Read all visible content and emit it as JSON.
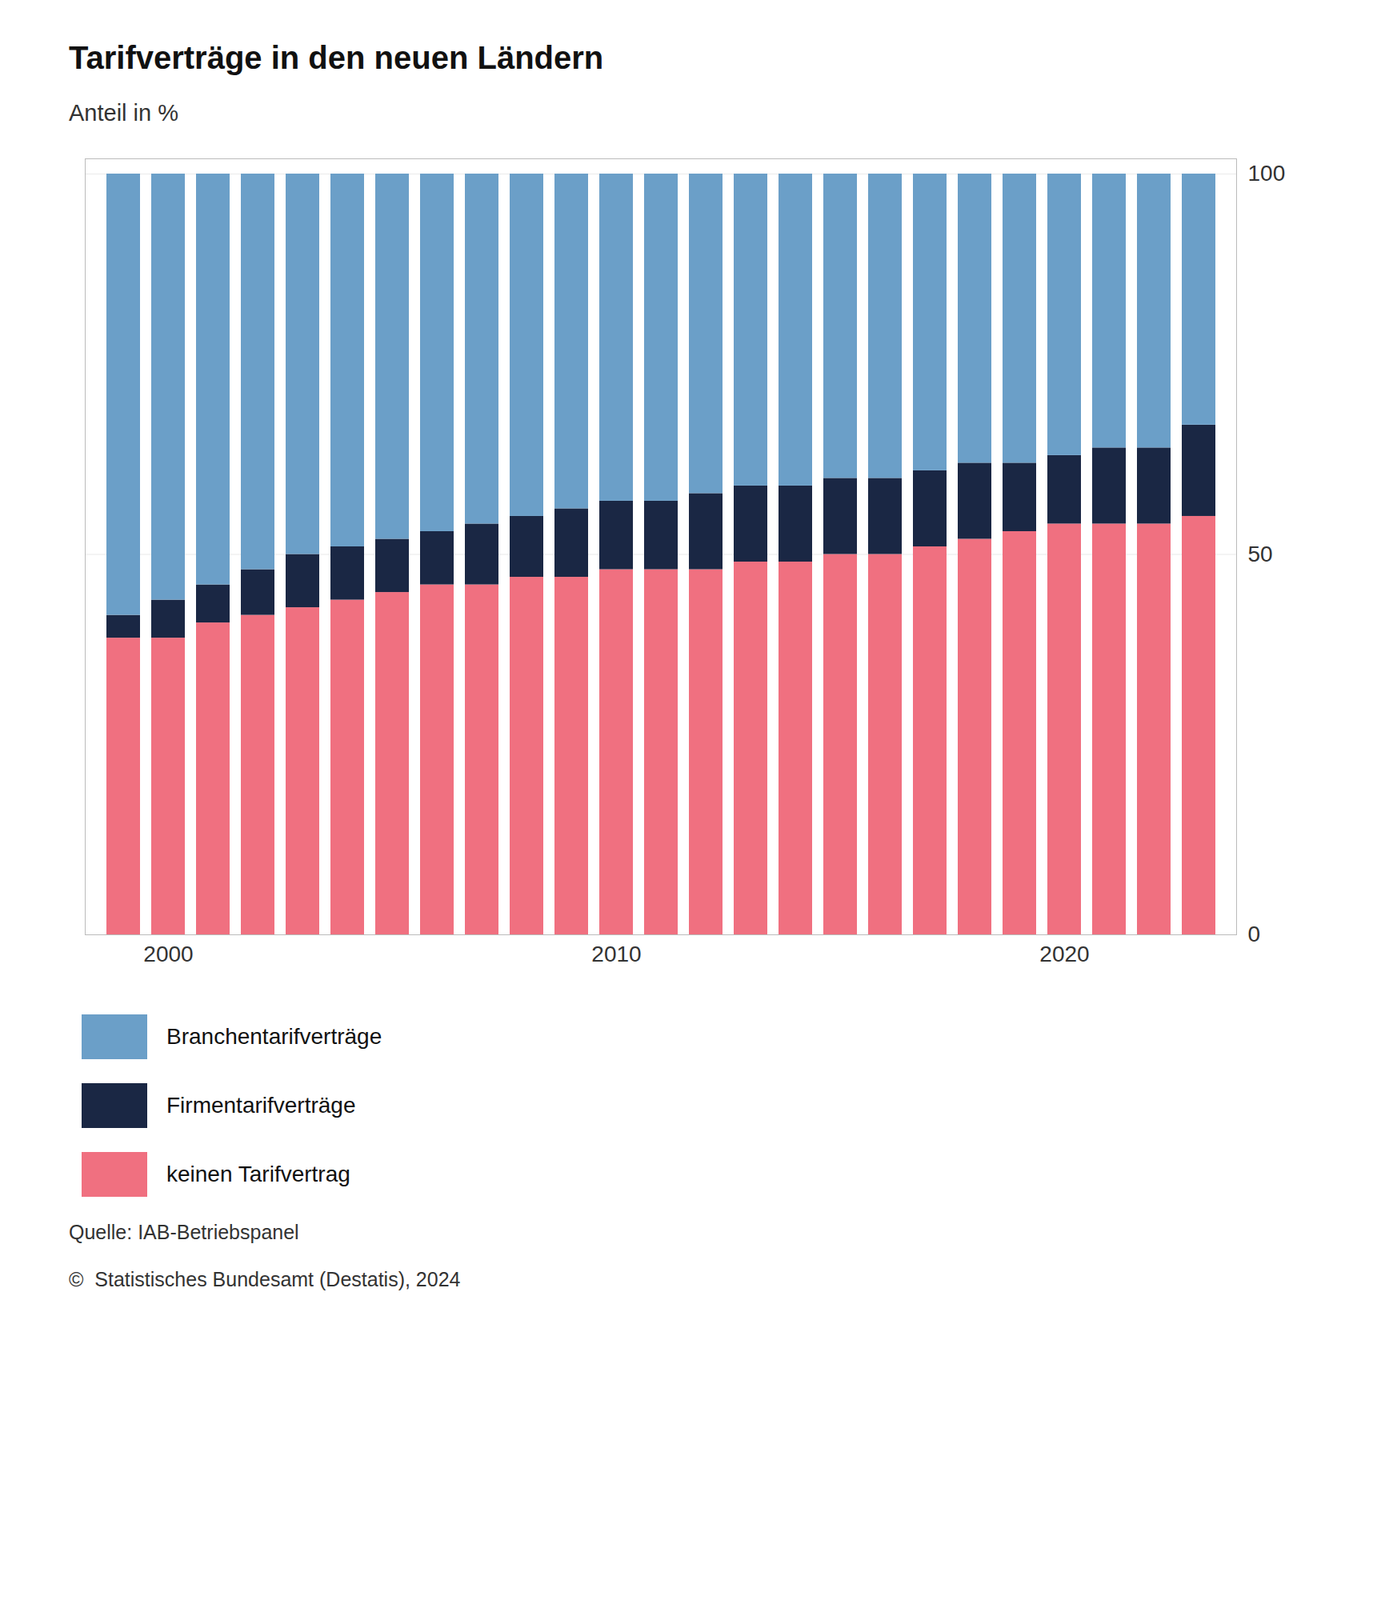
{
  "chart_data": {
    "type": "bar",
    "stacked": true,
    "title": "Tarifverträge in den neuen Ländern",
    "subtitle": "Anteil in %",
    "categories": [
      null,
      "2000",
      null,
      null,
      null,
      null,
      null,
      null,
      null,
      null,
      null,
      "2010",
      null,
      null,
      null,
      null,
      null,
      null,
      null,
      null,
      null,
      "2020",
      null,
      null,
      null
    ],
    "series": [
      {
        "name": "Branchentarifverträge",
        "color": "#6b9fc8",
        "values": [
          58,
          56,
          54,
          52,
          50,
          49,
          48,
          47,
          46,
          45,
          44,
          43,
          43,
          42,
          41,
          41,
          40,
          40,
          39,
          38,
          38,
          37,
          36,
          36,
          33
        ]
      },
      {
        "name": "Firmentarifverträge",
        "color": "#1a2744",
        "values": [
          3,
          5,
          5,
          6,
          7,
          7,
          7,
          7,
          8,
          8,
          9,
          9,
          9,
          10,
          10,
          10,
          10,
          10,
          10,
          10,
          9,
          9,
          10,
          10,
          12
        ]
      },
      {
        "name": "keinen Tarifvertrag",
        "color": "#f07080",
        "values": [
          39,
          39,
          41,
          42,
          43,
          44,
          45,
          46,
          46,
          47,
          47,
          48,
          48,
          48,
          49,
          49,
          50,
          50,
          51,
          52,
          53,
          54,
          54,
          54,
          55
        ]
      }
    ],
    "ylim": [
      0,
      102
    ],
    "yticks": [
      0,
      50,
      100
    ],
    "grid": true,
    "legend": "bottom",
    "annotations": [
      "Quelle: IAB-Betriebspanel",
      "©  Statistisches Bundesamt (Destatis), 2024"
    ]
  }
}
